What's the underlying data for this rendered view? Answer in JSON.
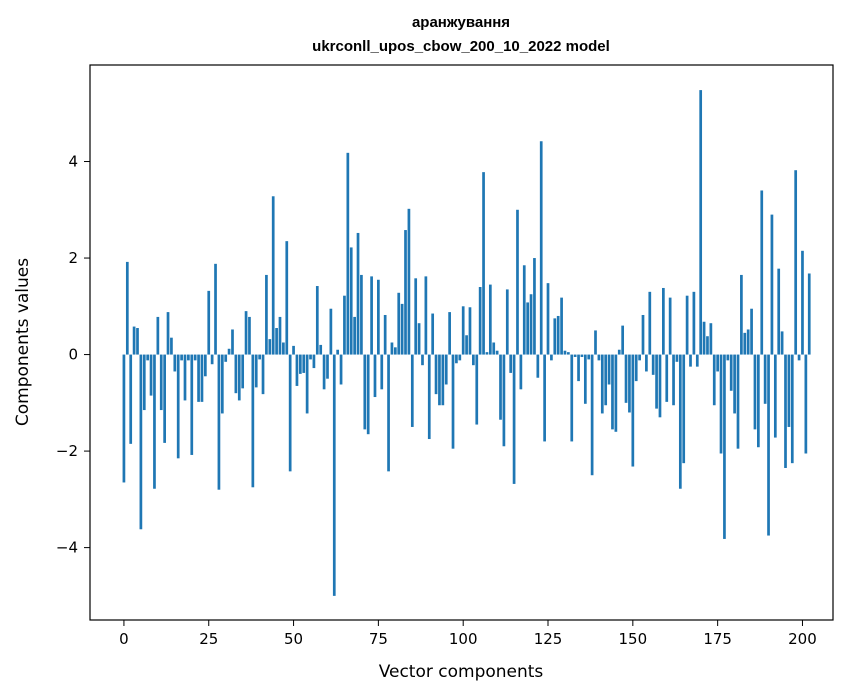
{
  "chart_data": {
    "type": "bar",
    "title": "аранжування",
    "subtitle": "ukrconll_upos_cbow_200_10_2022 model",
    "xlabel": "Vector components",
    "ylabel": "Components values",
    "bar_color": "#1f77b4",
    "xlim": [
      -10,
      209
    ],
    "ylim": [
      -5.5,
      6.0
    ],
    "x_ticks": [
      0,
      25,
      50,
      75,
      100,
      125,
      150,
      175,
      200
    ],
    "y_ticks": [
      -4,
      -2,
      0,
      2,
      4
    ],
    "y_tick_labels": [
      "−4",
      "−2",
      "0",
      "2",
      "4"
    ],
    "grid": false,
    "values": [
      -2.65,
      1.92,
      -1.85,
      0.58,
      0.55,
      -3.62,
      -1.15,
      -0.12,
      -0.85,
      -2.78,
      0.78,
      -1.15,
      -1.83,
      0.88,
      0.35,
      -0.35,
      -2.15,
      -0.12,
      -0.95,
      -0.12,
      -2.08,
      -0.12,
      -0.98,
      -0.98,
      -0.45,
      1.32,
      -0.2,
      1.88,
      -2.8,
      -1.22,
      -0.15,
      0.12,
      0.52,
      -0.8,
      -0.95,
      -0.7,
      0.9,
      0.78,
      -2.75,
      -0.68,
      -0.1,
      -0.82,
      1.65,
      0.32,
      3.28,
      0.55,
      0.78,
      0.25,
      2.35,
      -2.42,
      0.18,
      -0.65,
      -0.4,
      -0.38,
      -1.22,
      -0.1,
      -0.28,
      1.42,
      0.2,
      -0.72,
      -0.5,
      0.95,
      -5.0,
      0.1,
      -0.62,
      1.22,
      4.18,
      2.22,
      0.78,
      2.52,
      1.65,
      -1.55,
      -1.65,
      1.62,
      -0.88,
      1.55,
      -0.72,
      0.82,
      -2.42,
      0.25,
      0.15,
      1.28,
      1.05,
      2.58,
      3.02,
      -1.5,
      1.58,
      0.65,
      -0.22,
      1.62,
      -1.75,
      0.85,
      -0.82,
      -1.05,
      -1.05,
      -0.62,
      0.88,
      -1.95,
      -0.18,
      -0.12,
      1.0,
      0.4,
      0.98,
      -0.22,
      -1.45,
      1.4,
      3.78,
      0.05,
      1.45,
      0.25,
      0.08,
      -1.35,
      -1.9,
      1.35,
      -0.38,
      -2.68,
      3.0,
      -0.72,
      1.85,
      1.08,
      1.25,
      2.0,
      -0.48,
      4.42,
      -1.8,
      1.48,
      -0.12,
      0.75,
      0.8,
      1.18,
      0.08,
      0.05,
      -1.8,
      -0.05,
      -0.55,
      -0.05,
      -1.02,
      -0.1,
      -2.5,
      0.5,
      -0.12,
      -1.22,
      -1.05,
      -0.62,
      -1.55,
      -1.6,
      0.1,
      0.6,
      -1.0,
      -1.2,
      -2.32,
      -0.55,
      -0.12,
      0.82,
      -0.35,
      1.3,
      -0.42,
      -1.12,
      -1.3,
      1.38,
      -0.98,
      1.18,
      -1.05,
      -0.15,
      -2.78,
      -2.25,
      1.22,
      -0.25,
      1.3,
      -0.25,
      5.48,
      0.68,
      0.38,
      0.65,
      -1.05,
      -0.35,
      -2.05,
      -3.82,
      -0.12,
      -0.75,
      -1.22,
      -1.95,
      1.65,
      0.45,
      0.52,
      0.95,
      -1.55,
      -1.92,
      3.4,
      -1.02,
      -3.75,
      2.9,
      -1.72,
      1.78,
      0.48,
      -2.35,
      -1.5,
      -2.25,
      3.82,
      -0.12,
      2.15,
      -2.05,
      1.68
    ]
  }
}
